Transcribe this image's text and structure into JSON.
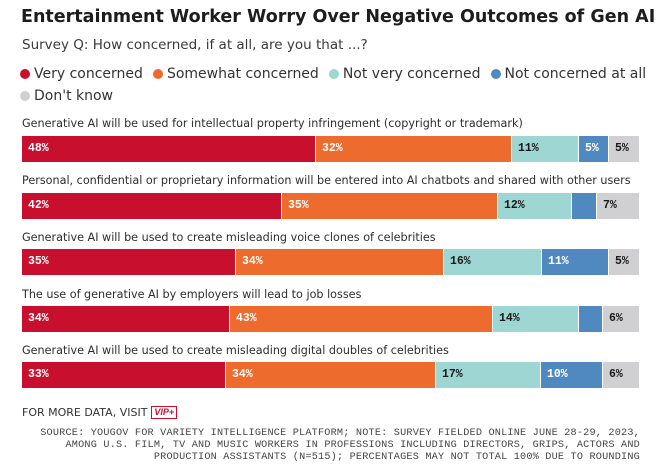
{
  "title": "Entertainment Worker Worry Over Negative Outcomes of Gen AI",
  "subtitle": "Survey Q: How concerned, if at all, are you that ...?",
  "legend": [
    {
      "label": "Very concerned",
      "color": "#c8102e"
    },
    {
      "label": "Somewhat concerned",
      "color": "#ec6b2d"
    },
    {
      "label": "Not very concerned",
      "color": "#9dd6d2"
    },
    {
      "label": "Not concerned at all",
      "color": "#4f89bf"
    },
    {
      "label": "Don't know",
      "color": "#d0d0d3"
    }
  ],
  "chart_data": {
    "type": "bar",
    "orientation": "horizontal-stacked-100",
    "title": "Entertainment Worker Worry Over Negative Outcomes of Gen AI",
    "subtitle": "Survey Q: How concerned, if at all, are you that ...?",
    "categories": [
      "Generative AI will be used for intellectual property infringement (copyright or trademark)",
      "Personal, confidential or proprietary information will be entered into AI chatbots and shared with other users",
      "Generative AI will be used to create misleading voice clones of celebrities",
      "The use of generative AI by employers will lead to job losses",
      "Generative AI will be used to create misleading digital doubles of celebrities"
    ],
    "series": [
      {
        "name": "Very concerned",
        "values": [
          48,
          42,
          35,
          34,
          33
        ],
        "labels": [
          "48%",
          "42%",
          "35%",
          "34%",
          "33%"
        ]
      },
      {
        "name": "Somewhat concerned",
        "values": [
          32,
          35,
          34,
          43,
          34
        ],
        "labels": [
          "32%",
          "35%",
          "34%",
          "43%",
          "34%"
        ]
      },
      {
        "name": "Not very concerned",
        "values": [
          11,
          12,
          16,
          14,
          17
        ],
        "labels": [
          "11%",
          "12%",
          "16%",
          "14%",
          "17%"
        ]
      },
      {
        "name": "Not concerned at all",
        "values": [
          5,
          4,
          11,
          4,
          10
        ],
        "labels": [
          "5%",
          "",
          "11%",
          "",
          "10%"
        ]
      },
      {
        "name": "Don't know",
        "values": [
          5,
          7,
          5,
          6,
          6
        ],
        "labels": [
          "5%",
          "7%",
          "5%",
          "6%",
          "6%"
        ]
      }
    ]
  },
  "footer": {
    "more_data": "FOR MORE DATA, VISIT",
    "source": "SOURCE: YOUGOV FOR VARIETY INTELLIGENCE PLATFORM; NOTE: SURVEY FIELDED ONLINE JUNE 28-29, 2023, AMONG U.S. FILM, TV AND MUSIC WORKERS IN PROFESSIONS INCLUDING DIRECTORS, GRIPS, ACTORS AND PRODUCTION ASSISTANTS (N=515); PERCENTAGES MAY NOT TOTAL 100% DUE TO ROUNDING"
  },
  "logo_text": "VIP+"
}
